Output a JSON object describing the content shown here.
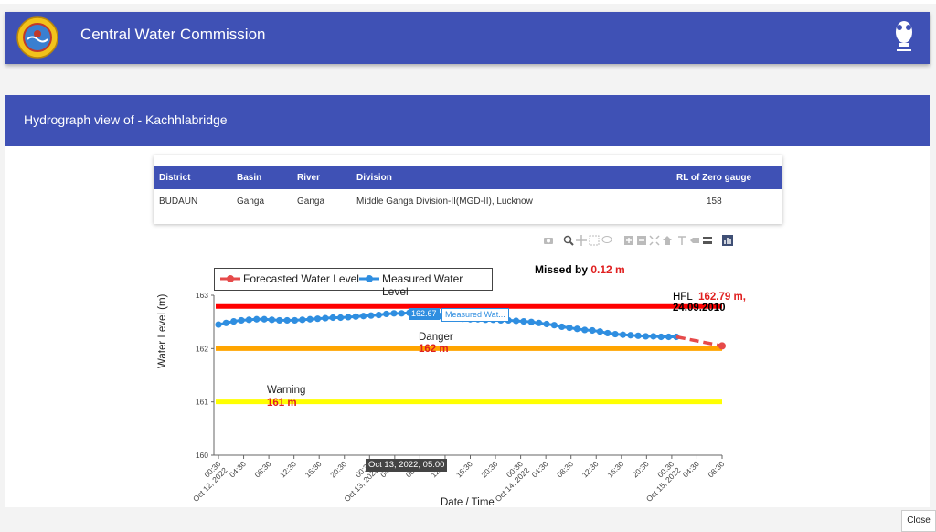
{
  "header": {
    "title": "Central Water Commission",
    "logo_icon": "cwc-logo-icon",
    "emblem_icon": "state-emblem-icon"
  },
  "page": {
    "title": "Hydrograph view of - Kachhlabridge"
  },
  "station_table": {
    "headers": [
      "District",
      "Basin",
      "River",
      "Division",
      "RL of Zero gauge"
    ],
    "row": [
      "BUDAUN",
      "Ganga",
      "Ganga",
      "Middle Ganga Division-II(MGD-II), Lucknow",
      "158"
    ]
  },
  "modebar_icons": [
    "camera-icon",
    "zoom-icon",
    "pan-icon",
    "box-select-icon",
    "lasso-select-icon",
    "zoom-in-icon",
    "zoom-out-icon",
    "autoscale-icon",
    "reset-axes-icon",
    "spike-lines-icon",
    "hover-closest-icon",
    "hover-compare-icon",
    "plotly-logo-icon"
  ],
  "chart_annotations": {
    "missed_prefix": "Missed by ",
    "missed_value": "0.12 m",
    "hfl_label": "HFL",
    "hfl_value": "162.79 m,",
    "hfl_date": "24.09.2010",
    "danger_label": "Danger",
    "danger_value": "162 m",
    "warning_label": "Warning",
    "warning_value": "161 m",
    "hover_value": "162.67",
    "hover_series": "Measured Wat...",
    "hover_x": "Oct 13, 2022, 05:00"
  },
  "chart_data": {
    "type": "line",
    "xlabel": "Date / Time",
    "ylabel": "Water Level (m)",
    "ylim": [
      160,
      163
    ],
    "yticks": [
      160,
      161,
      162,
      163
    ],
    "xticks": [
      "00:30\nOct 12, 2022",
      "04:30",
      "08:30",
      "12:30",
      "16:30",
      "20:30",
      "00:30\nOct 13, 2022",
      "04:30",
      "08:30",
      "12:30",
      "16:30",
      "20:30",
      "00:30\nOct 14, 2022",
      "04:30",
      "08:30",
      "12:30",
      "16:30",
      "20:30",
      "00:30\nOct 15, 2022",
      "04:30",
      "08:30"
    ],
    "legend": {
      "placement": "top-left",
      "entries": [
        "Forecasted Water Level",
        "Measured Water Level"
      ]
    },
    "reference_lines": [
      {
        "name": "HFL",
        "y": 162.79,
        "color": "#ff0000"
      },
      {
        "name": "Danger",
        "y": 162,
        "color": "#ffa500"
      },
      {
        "name": "Warning",
        "y": 161,
        "color": "#ffff00"
      }
    ],
    "series": [
      {
        "name": "Measured Water Level",
        "color": "#2f8ee0",
        "hours": [
          0,
          2,
          4,
          6,
          8,
          10,
          12,
          14,
          16,
          18,
          20,
          22,
          24,
          26,
          28,
          30,
          32,
          34,
          36,
          38,
          40,
          42,
          44,
          46,
          48,
          50,
          52,
          54,
          56,
          58,
          60,
          62,
          64,
          66,
          68,
          70,
          72,
          74,
          76,
          78,
          80,
          82,
          84,
          86,
          88,
          90,
          92,
          94,
          96,
          98,
          100,
          102,
          104,
          106,
          108,
          110,
          112,
          114,
          116,
          118,
          120
        ],
        "values": [
          162.45,
          162.48,
          162.51,
          162.53,
          162.54,
          162.55,
          162.55,
          162.54,
          162.53,
          162.53,
          162.53,
          162.54,
          162.55,
          162.56,
          162.57,
          162.58,
          162.58,
          162.59,
          162.6,
          162.61,
          162.62,
          162.63,
          162.65,
          162.66,
          162.66,
          162.67,
          162.67,
          162.66,
          162.64,
          162.61,
          162.59,
          162.57,
          162.56,
          162.55,
          162.55,
          162.54,
          162.54,
          162.53,
          162.53,
          162.52,
          162.51,
          162.5,
          162.48,
          162.46,
          162.44,
          162.41,
          162.39,
          162.37,
          162.35,
          162.34,
          162.32,
          162.29,
          162.27,
          162.26,
          162.25,
          162.24,
          162.23,
          162.23,
          162.22,
          162.22,
          162.22
        ]
      },
      {
        "name": "Forecasted Water Level",
        "color": "#e64a4a",
        "hours": [
          120,
          132
        ],
        "values": [
          162.22,
          162.05
        ]
      }
    ]
  },
  "footer": {
    "close_label": "Close"
  }
}
